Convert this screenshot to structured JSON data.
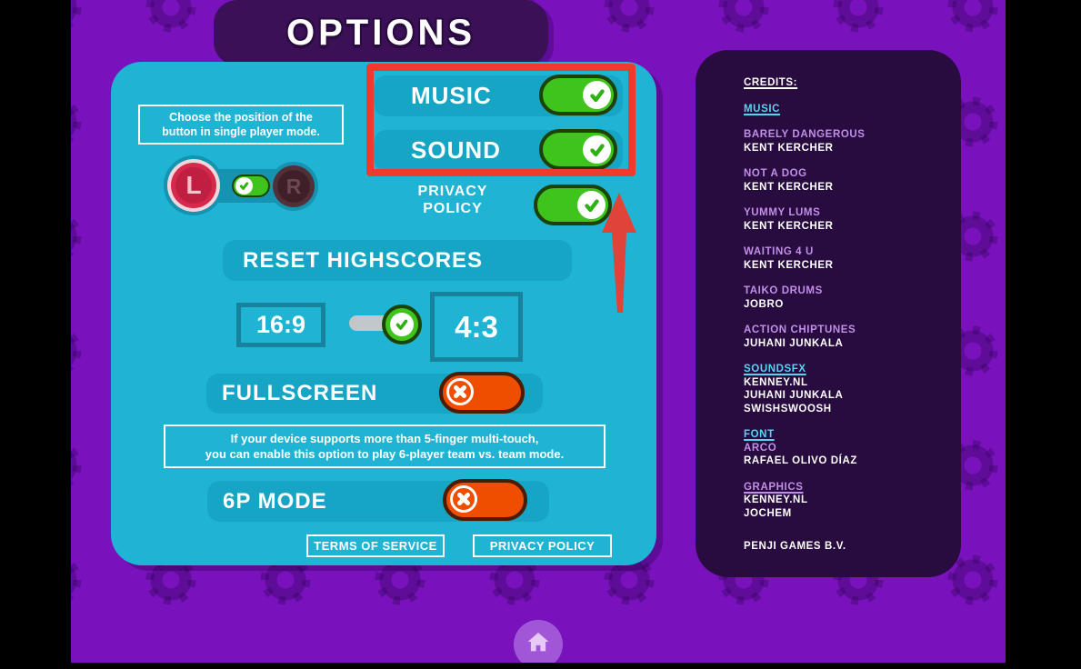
{
  "screen": {
    "title": "OPTIONS"
  },
  "options_panel": {
    "music": {
      "label": "MUSIC",
      "state": "on"
    },
    "sound": {
      "label": "SOUND",
      "state": "on"
    },
    "privacy": {
      "label_line1": "PRIVACY",
      "label_line2": "POLICY",
      "state": "on"
    },
    "position_hint": {
      "line1": "Choose the position of the",
      "line2": "button in single player mode."
    },
    "lr_toggle": {
      "left_label": "L",
      "right_label": "R",
      "selected": "L"
    },
    "reset_highscores": {
      "label": "RESET HIGHSCORES"
    },
    "aspect_toggle": {
      "left_label": "16:9",
      "right_label": "4:3",
      "selected": "4:3"
    },
    "fullscreen": {
      "label": "FULLSCREEN",
      "state": "off"
    },
    "multitouch_hint": {
      "line1": "If your device supports more than 5-finger multi-touch,",
      "line2": "you can enable this option to play 6-player team vs. team mode."
    },
    "sixp_mode": {
      "label": "6P MODE",
      "state": "off"
    },
    "terms_button": "TERMS OF SERVICE",
    "privacy_button": "PRIVACY POLICY"
  },
  "credits_panel": {
    "heading": "CREDITS:",
    "music_heading": "MUSIC",
    "tracks": [
      {
        "title": "BARELY DANGEROUS",
        "author": "KENT KERCHER"
      },
      {
        "title": "NOT A DOG",
        "author": "KENT KERCHER"
      },
      {
        "title": "YUMMY LUMS",
        "author": "KENT KERCHER"
      },
      {
        "title": "WAITING 4 U",
        "author": "KENT KERCHER"
      },
      {
        "title": "TAIKO DRUMS",
        "author": "JOBRO"
      },
      {
        "title": "ACTION CHIPTUNES",
        "author": "JUHANI JUNKALA"
      }
    ],
    "soundsfx_heading": "SOUNDSFX",
    "soundsfx_names": [
      "KENNEY.NL",
      "JUHANI JUNKALA",
      "SWISHSWOOSH"
    ],
    "font_heading": "FONT",
    "font_name": "ARCO",
    "font_author": "RAFAEL OLIVO DÍAZ",
    "graphics_heading": "GRAPHICS",
    "graphics_names": [
      "KENNEY.NL",
      "JOCHEM"
    ],
    "footer": "PENJI GAMES B.V."
  },
  "colors": {
    "background": "#7911bd",
    "panel_cyan": "#1fb4d4",
    "credits_bg": "#280b3f",
    "toggle_on_green": "#3fc31d",
    "toggle_off_orange": "#ef4d00",
    "annotation_red": "#ef3b2d",
    "link_cyan": "#53d7f0",
    "credit_lavender": "#c18fe8"
  }
}
